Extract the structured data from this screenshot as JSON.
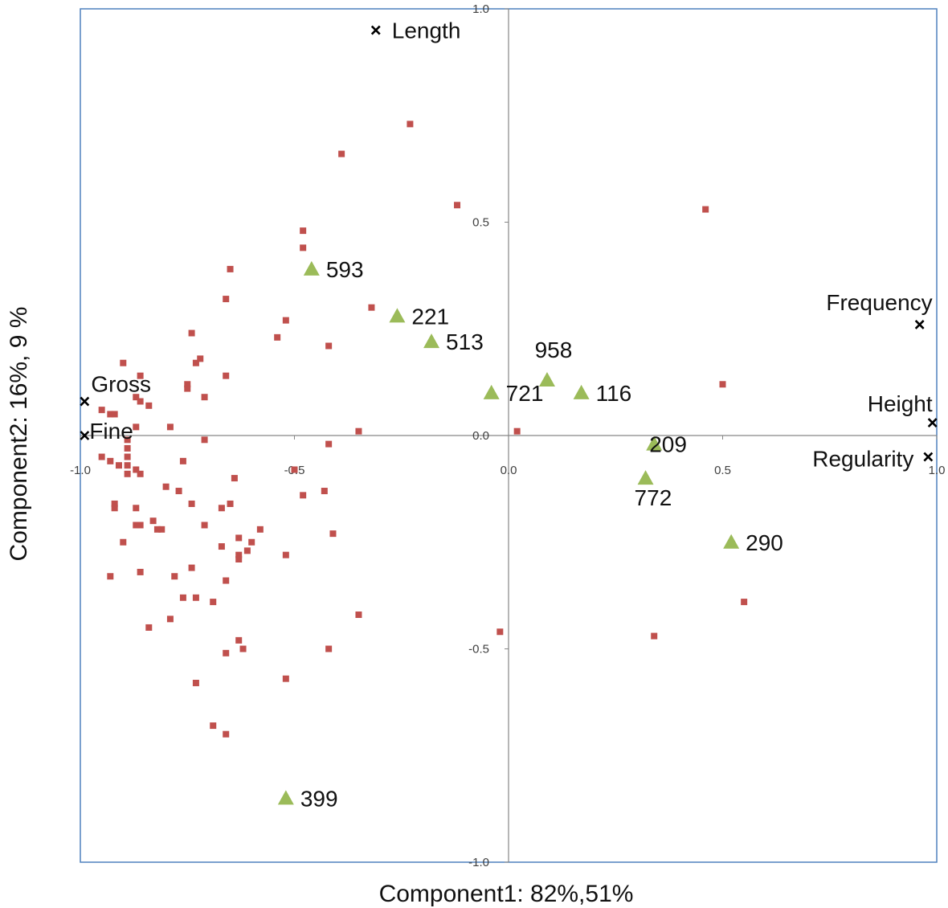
{
  "colors": {
    "plot_border": "#4f81bd",
    "axis_line": "#868686",
    "observation_marker": "#c0504d",
    "highlight_marker": "#9bbb59",
    "variable_marker": "#000000",
    "text": "#111111"
  },
  "chart_data": {
    "type": "scatter",
    "xlabel": "Component1:  82%,51%",
    "ylabel": "Component2: 16%, 9 %",
    "xlim": [
      -1.0,
      1.0
    ],
    "ylim": [
      -1.0,
      1.0
    ],
    "xticks": [
      -1.0,
      -0.5,
      0.0,
      0.5,
      1.0
    ],
    "yticks": [
      -1.0,
      -0.5,
      0.0,
      0.5,
      1.0
    ],
    "xtick_labels": [
      "-1.0",
      "-0.5",
      "0.0",
      "0.5",
      "1.0"
    ],
    "ytick_labels": [
      "-1.0",
      "-0.5",
      "0.0",
      "0.5",
      "1.0"
    ],
    "grid": false,
    "legend": "none",
    "series": [
      {
        "marker": "x",
        "points": [
          {
            "x": -0.31,
            "y": 0.95,
            "label": "Length"
          },
          {
            "x": 0.96,
            "y": 0.26,
            "label": "Frequency"
          },
          {
            "x": -0.99,
            "y": 0.08,
            "label": "Gross"
          },
          {
            "x": -0.99,
            "y": 0.0,
            "label": "Fine"
          },
          {
            "x": 0.99,
            "y": 0.03,
            "label": "Height"
          },
          {
            "x": 0.98,
            "y": -0.05,
            "label": "Regularity"
          }
        ]
      },
      {
        "marker": "triangle",
        "points": [
          {
            "x": -0.46,
            "y": 0.39,
            "label": "593"
          },
          {
            "x": -0.26,
            "y": 0.28,
            "label": "221"
          },
          {
            "x": -0.18,
            "y": 0.22,
            "label": "513"
          },
          {
            "x": 0.09,
            "y": 0.13,
            "label": "958"
          },
          {
            "x": -0.04,
            "y": 0.1,
            "label": "721"
          },
          {
            "x": 0.17,
            "y": 0.1,
            "label": "116"
          },
          {
            "x": 0.34,
            "y": -0.02,
            "label": "209"
          },
          {
            "x": 0.32,
            "y": -0.1,
            "label": "772"
          },
          {
            "x": 0.52,
            "y": -0.25,
            "label": "290"
          },
          {
            "x": -0.52,
            "y": -0.85,
            "label": "399"
          }
        ]
      },
      {
        "marker": "square",
        "points": [
          {
            "x": -0.23,
            "y": 0.73
          },
          {
            "x": -0.39,
            "y": 0.66
          },
          {
            "x": -0.12,
            "y": 0.54
          },
          {
            "x": -0.48,
            "y": 0.48
          },
          {
            "x": -0.48,
            "y": 0.44
          },
          {
            "x": -0.65,
            "y": 0.39
          },
          {
            "x": -0.66,
            "y": 0.32
          },
          {
            "x": -0.32,
            "y": 0.3
          },
          {
            "x": -0.52,
            "y": 0.27
          },
          {
            "x": -0.54,
            "y": 0.23
          },
          {
            "x": -0.74,
            "y": 0.24
          },
          {
            "x": -0.42,
            "y": 0.21
          },
          {
            "x": -0.72,
            "y": 0.18
          },
          {
            "x": -0.73,
            "y": 0.17
          },
          {
            "x": -0.9,
            "y": 0.17
          },
          {
            "x": -0.86,
            "y": 0.14
          },
          {
            "x": -0.66,
            "y": 0.14
          },
          {
            "x": -0.75,
            "y": 0.12
          },
          {
            "x": -0.75,
            "y": 0.11
          },
          {
            "x": -0.71,
            "y": 0.09
          },
          {
            "x": -0.87,
            "y": 0.09
          },
          {
            "x": -0.86,
            "y": 0.08
          },
          {
            "x": -0.84,
            "y": 0.07
          },
          {
            "x": -0.95,
            "y": 0.06
          },
          {
            "x": -0.93,
            "y": 0.05
          },
          {
            "x": -0.92,
            "y": 0.05
          },
          {
            "x": -0.79,
            "y": 0.02
          },
          {
            "x": -0.87,
            "y": 0.02
          },
          {
            "x": -0.35,
            "y": 0.01
          },
          {
            "x": 0.02,
            "y": 0.01
          },
          {
            "x": -0.89,
            "y": -0.01
          },
          {
            "x": -0.71,
            "y": -0.01
          },
          {
            "x": -0.42,
            "y": -0.02
          },
          {
            "x": -0.89,
            "y": -0.03
          },
          {
            "x": -0.95,
            "y": -0.05
          },
          {
            "x": -0.89,
            "y": -0.05
          },
          {
            "x": -0.93,
            "y": -0.06
          },
          {
            "x": -0.76,
            "y": -0.06
          },
          {
            "x": -0.91,
            "y": -0.07
          },
          {
            "x": -0.89,
            "y": -0.07
          },
          {
            "x": -0.87,
            "y": -0.08
          },
          {
            "x": -0.89,
            "y": -0.09
          },
          {
            "x": -0.86,
            "y": -0.09
          },
          {
            "x": -0.5,
            "y": -0.08
          },
          {
            "x": -0.64,
            "y": -0.1
          },
          {
            "x": -0.8,
            "y": -0.12
          },
          {
            "x": -0.77,
            "y": -0.13
          },
          {
            "x": -0.43,
            "y": -0.13
          },
          {
            "x": -0.48,
            "y": -0.14
          },
          {
            "x": -0.74,
            "y": -0.16
          },
          {
            "x": -0.65,
            "y": -0.16
          },
          {
            "x": -0.92,
            "y": -0.16
          },
          {
            "x": -0.87,
            "y": -0.17
          },
          {
            "x": -0.92,
            "y": -0.17
          },
          {
            "x": -0.67,
            "y": -0.17
          },
          {
            "x": -0.83,
            "y": -0.2
          },
          {
            "x": -0.87,
            "y": -0.21
          },
          {
            "x": -0.86,
            "y": -0.21
          },
          {
            "x": -0.82,
            "y": -0.22
          },
          {
            "x": -0.81,
            "y": -0.22
          },
          {
            "x": -0.58,
            "y": -0.22
          },
          {
            "x": -0.71,
            "y": -0.21
          },
          {
            "x": -0.41,
            "y": -0.23
          },
          {
            "x": -0.63,
            "y": -0.24
          },
          {
            "x": -0.9,
            "y": -0.25
          },
          {
            "x": -0.6,
            "y": -0.25
          },
          {
            "x": -0.67,
            "y": -0.26
          },
          {
            "x": -0.63,
            "y": -0.28
          },
          {
            "x": -0.61,
            "y": -0.27
          },
          {
            "x": -0.52,
            "y": -0.28
          },
          {
            "x": -0.63,
            "y": -0.29
          },
          {
            "x": -0.74,
            "y": -0.31
          },
          {
            "x": -0.86,
            "y": -0.32
          },
          {
            "x": -0.93,
            "y": -0.33
          },
          {
            "x": -0.78,
            "y": -0.33
          },
          {
            "x": -0.66,
            "y": -0.34
          },
          {
            "x": -0.76,
            "y": -0.38
          },
          {
            "x": -0.73,
            "y": -0.38
          },
          {
            "x": -0.69,
            "y": -0.39
          },
          {
            "x": -0.35,
            "y": -0.42
          },
          {
            "x": -0.79,
            "y": -0.43
          },
          {
            "x": -0.84,
            "y": -0.45
          },
          {
            "x": -0.63,
            "y": -0.48
          },
          {
            "x": -0.62,
            "y": -0.5
          },
          {
            "x": -0.42,
            "y": -0.5
          },
          {
            "x": -0.66,
            "y": -0.51
          },
          {
            "x": -0.52,
            "y": -0.57
          },
          {
            "x": -0.73,
            "y": -0.58
          },
          {
            "x": -0.69,
            "y": -0.68
          },
          {
            "x": -0.66,
            "y": -0.7
          },
          {
            "x": -0.02,
            "y": -0.46
          },
          {
            "x": 0.46,
            "y": 0.53
          },
          {
            "x": 0.5,
            "y": 0.12
          },
          {
            "x": 0.55,
            "y": -0.39
          },
          {
            "x": 0.34,
            "y": -0.47
          }
        ]
      }
    ]
  }
}
